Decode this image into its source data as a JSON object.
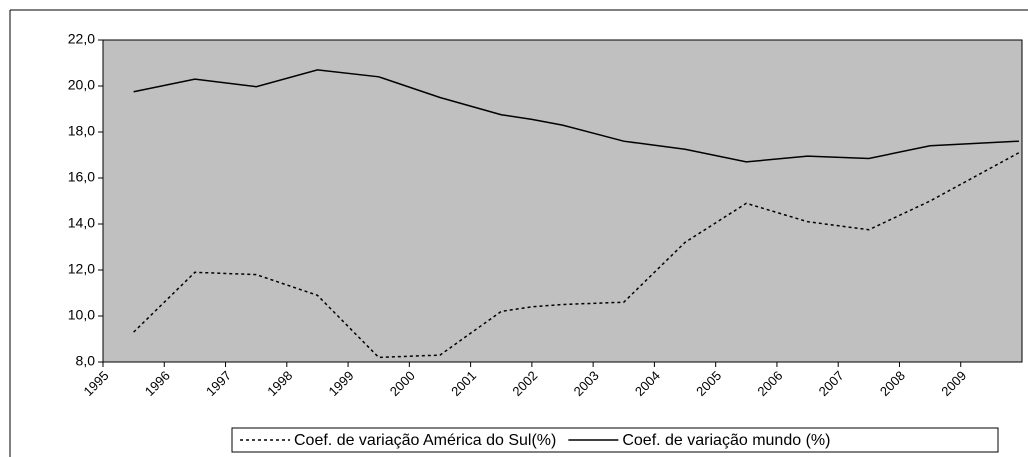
{
  "chart_data": {
    "type": "line",
    "x": [
      1995.5,
      1996.5,
      1997.5,
      1998.5,
      1999.5,
      2000.5,
      2001.5,
      2002,
      2002.5,
      2003.5,
      2004.5,
      2005.5,
      2006.5,
      2007.5,
      2008.5,
      2009.95
    ],
    "series": [
      {
        "name": "Coef. de variação América do Sul(%)",
        "color": "#000000",
        "dash": "dotted",
        "values": [
          9.3,
          11.9,
          11.8,
          10.9,
          8.2,
          8.3,
          10.2,
          10.4,
          10.5,
          10.6,
          13.2,
          14.9,
          14.1,
          13.75,
          15.0,
          17.1
        ]
      },
      {
        "name": "Coef. de variação mundo (%)",
        "color": "#000000",
        "dash": "solid",
        "values": [
          19.75,
          20.3,
          19.97,
          20.7,
          20.4,
          19.5,
          18.75,
          18.55,
          18.3,
          17.6,
          17.25,
          16.7,
          16.95,
          16.85,
          17.4,
          17.6
        ]
      }
    ],
    "xlim": [
      1995,
      2010
    ],
    "xticks": [
      1995,
      1996,
      1997,
      1998,
      1999,
      2000,
      2001,
      2002,
      2003,
      2004,
      2005,
      2006,
      2007,
      2008,
      2009
    ],
    "ylim": [
      8,
      22
    ],
    "yticks": [
      {
        "value": 8,
        "label": "8,0"
      },
      {
        "value": 10,
        "label": "10,0"
      },
      {
        "value": 12,
        "label": "12,0"
      },
      {
        "value": 14,
        "label": "14,0"
      },
      {
        "value": 16,
        "label": "16,0"
      },
      {
        "value": 18,
        "label": "18,0"
      },
      {
        "value": 20,
        "label": "20,0"
      },
      {
        "value": 22,
        "label": "22,0"
      }
    ],
    "legend": "bottom",
    "plot_background": "#c0c0c0"
  }
}
